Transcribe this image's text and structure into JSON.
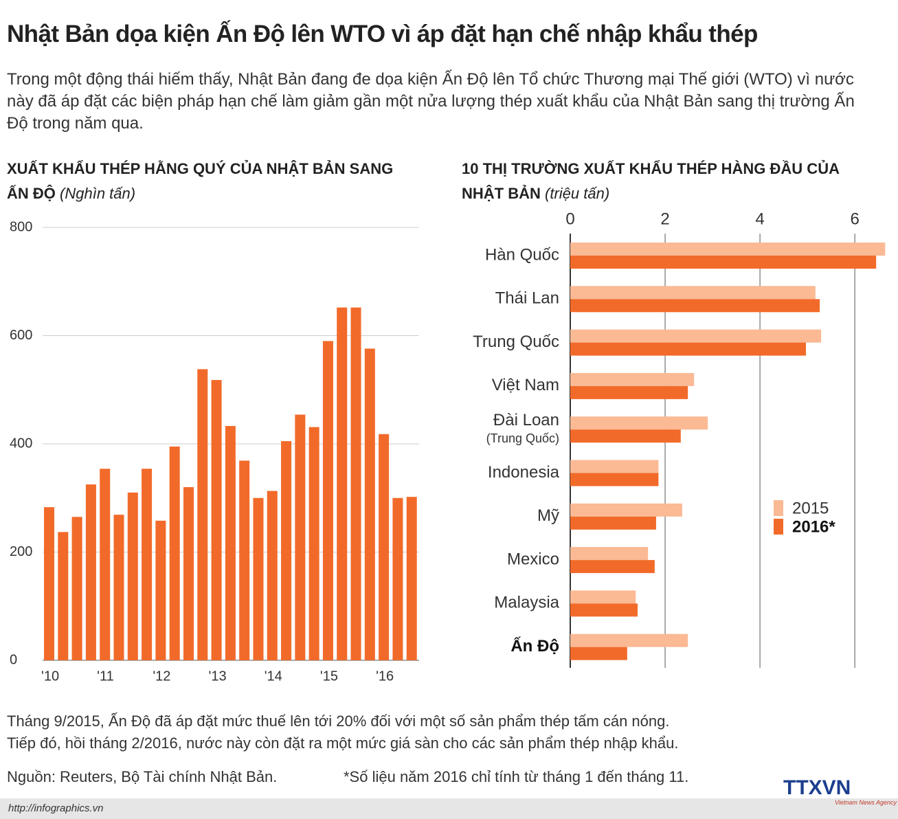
{
  "title": "Nhật Bản dọa kiện Ấn Độ lên WTO vì áp đặt hạn chế nhập khẩu thép",
  "subtitle": "Trong một động thái hiếm thấy, Nhật Bản đang đe dọa kiện Ấn Độ lên Tổ chức Thương mại Thế giới (WTO) vì nước này đã áp đặt các biện pháp hạn chế làm giảm gần một nửa lượng thép xuất khẩu của Nhật Bản sang thị trường Ấn Độ trong năm qua.",
  "chart_data": [
    {
      "type": "bar",
      "title": "XUẤT KHẨU THÉP HẰNG QUÝ CỦA NHẬT BẢN SANG ẤN ĐỘ",
      "unit": "(Nghìn tấn)",
      "categories": [
        "'10",
        null,
        null,
        null,
        "'11",
        null,
        null,
        null,
        "'12",
        null,
        null,
        null,
        "'13",
        null,
        null,
        null,
        "'14",
        null,
        null,
        null,
        "'15",
        null,
        null,
        null,
        "'16",
        null,
        null
      ],
      "values": [
        283,
        237,
        265,
        325,
        354,
        269,
        310,
        354,
        258,
        395,
        320,
        538,
        518,
        433,
        369,
        300,
        313,
        405,
        454,
        431,
        590,
        652,
        652,
        576,
        418,
        300,
        302
      ],
      "color": "#f26a2a",
      "ylim": [
        0,
        800
      ],
      "yticks": [
        0,
        200,
        400,
        600,
        800
      ],
      "grid": true
    },
    {
      "type": "hbar",
      "title": "10 THỊ TRƯỜNG XUẤT KHẨU THÉP HÀNG ĐẦU CỦA NHẬT BẢN",
      "unit": "(triệu tấn)",
      "categories": [
        "Hàn Quốc",
        "Thái Lan",
        "Trung Quốc",
        "Việt Nam",
        "Đài Loan (Trung Quốc)",
        "Indonesia",
        "Mỹ",
        "Mexico",
        "Malaysia",
        "Ấn Độ"
      ],
      "series": [
        {
          "name": "2015",
          "color": "#fbb994",
          "values": [
            6.64,
            5.17,
            5.29,
            2.61,
            2.9,
            1.86,
            2.36,
            1.64,
            1.38,
            2.48
          ]
        },
        {
          "name": "2016*",
          "color": "#f26a2a",
          "values": [
            6.45,
            5.26,
            4.97,
            2.48,
            2.33,
            1.86,
            1.81,
            1.78,
            1.42,
            1.2
          ]
        }
      ],
      "xlim": [
        0,
        6.65
      ],
      "xticks": [
        0,
        2,
        4,
        6
      ],
      "grid": true,
      "legend": "right"
    }
  ],
  "note": [
    "Tháng 9/2015, Ấn Độ đã áp đặt mức thuế lên tới 20% đối với một số sản phẩm thép tấm cán nóng.",
    "Tiếp đó, hồi tháng 2/2016, nước này còn đặt ra một mức giá sàn cho các sản phẩm thép nhập khẩu."
  ],
  "source": "Nguồn: Reuters, Bộ Tài chính Nhật Bản.",
  "footnote": "*Số liệu năm 2016 chỉ tính từ tháng 1 đến tháng 11.",
  "website": "http://infographics.vn",
  "logo": "TTXVN",
  "logo_sub": "Vietnam News Agency"
}
